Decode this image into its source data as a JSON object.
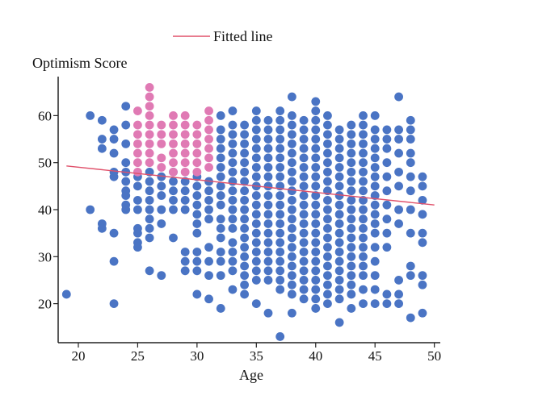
{
  "chart_data": {
    "type": "scatter",
    "xlabel": "Age",
    "ylabel": "Optimism Score",
    "xlim": [
      18.3,
      50.5
    ],
    "ylim": [
      11.7,
      68.3
    ],
    "xticks": [
      20,
      25,
      30,
      35,
      40,
      45,
      50
    ],
    "yticks": [
      20,
      30,
      40,
      50,
      60
    ],
    "grid": false,
    "legend": {
      "position": "top-center",
      "entries": [
        {
          "label": "Fitted line",
          "color": "#e0506a"
        }
      ]
    },
    "colors": {
      "points": "#4a74c4",
      "highlight": "#e07ab4",
      "fitted_line": "#e0506a"
    },
    "fitted_line": {
      "x": [
        19,
        50
      ],
      "y": [
        49.3,
        41.0
      ]
    },
    "series": [
      {
        "color": "#4a74c4",
        "x_groups": [
          {
            "x": 19,
            "y": [
              22
            ]
          },
          {
            "x": 21,
            "y": [
              60,
              40
            ]
          },
          {
            "x": 22,
            "y": [
              59,
              55,
              53,
              37,
              36
            ]
          },
          {
            "x": 23,
            "y": [
              57,
              55,
              52,
              48,
              47,
              35,
              29,
              20
            ]
          },
          {
            "x": 24,
            "y": [
              62,
              58,
              54,
              50,
              48,
              46,
              44,
              43,
              41,
              40
            ]
          },
          {
            "x": 25,
            "y": [
              47,
              45,
              42,
              40,
              36,
              35,
              33,
              32
            ]
          },
          {
            "x": 26,
            "y": [
              48,
              46,
              44,
              42,
              40,
              38,
              36,
              34,
              27
            ]
          },
          {
            "x": 27,
            "y": [
              47,
              45,
              43,
              40,
              37,
              26
            ]
          },
          {
            "x": 28,
            "y": [
              48,
              46,
              44,
              42,
              40,
              34
            ]
          },
          {
            "x": 29,
            "y": [
              46,
              44,
              42,
              40,
              31,
              29,
              27
            ]
          },
          {
            "x": 30,
            "y": [
              47,
              45,
              43,
              41,
              39,
              37,
              35,
              31,
              29,
              27,
              22
            ]
          },
          {
            "x": 31,
            "y": [
              46,
              44,
              42,
              40,
              38,
              32,
              29,
              26,
              21
            ]
          },
          {
            "x": 32,
            "y": [
              60,
              57,
              55,
              53,
              51,
              49,
              47,
              45,
              43,
              41,
              38,
              36,
              34,
              31,
              29,
              26,
              19
            ]
          },
          {
            "x": 33,
            "y": [
              61,
              58,
              56,
              54,
              52,
              50,
              48,
              46,
              44,
              42,
              40,
              38,
              36,
              33,
              31,
              29,
              27,
              23
            ]
          },
          {
            "x": 34,
            "y": [
              58,
              56,
              54,
              52,
              50,
              48,
              46,
              44,
              42,
              40,
              38,
              36,
              34,
              32,
              30,
              28,
              26,
              24,
              22
            ]
          },
          {
            "x": 35,
            "y": [
              61,
              59,
              57,
              55,
              53,
              51,
              49,
              47,
              45,
              43,
              41,
              39,
              37,
              35,
              33,
              31,
              29,
              27,
              25,
              20
            ]
          },
          {
            "x": 36,
            "y": [
              59,
              57,
              55,
              53,
              51,
              49,
              47,
              45,
              43,
              41,
              39,
              37,
              35,
              33,
              31,
              29,
              27,
              25,
              18
            ]
          },
          {
            "x": 37,
            "y": [
              61,
              59,
              57,
              55,
              53,
              51,
              49,
              47,
              45,
              43,
              41,
              39,
              37,
              35,
              33,
              31,
              29,
              27,
              25,
              23,
              13
            ]
          },
          {
            "x": 38,
            "y": [
              64,
              60,
              58,
              56,
              54,
              52,
              50,
              48,
              46,
              44,
              42,
              40,
              38,
              36,
              34,
              32,
              30,
              28,
              26,
              24,
              22,
              18
            ]
          },
          {
            "x": 39,
            "y": [
              59,
              57,
              55,
              53,
              51,
              49,
              47,
              45,
              43,
              41,
              39,
              37,
              35,
              33,
              31,
              29,
              27,
              25,
              23,
              21
            ]
          },
          {
            "x": 40,
            "y": [
              63,
              61,
              59,
              57,
              55,
              53,
              51,
              49,
              47,
              45,
              43,
              41,
              39,
              37,
              35,
              33,
              31,
              29,
              27,
              25,
              23,
              21,
              19
            ]
          },
          {
            "x": 41,
            "y": [
              60,
              58,
              56,
              54,
              52,
              50,
              48,
              46,
              44,
              42,
              40,
              38,
              36,
              34,
              32,
              30,
              28,
              26,
              24,
              22,
              20
            ]
          },
          {
            "x": 42,
            "y": [
              57,
              55,
              53,
              51,
              49,
              47,
              45,
              43,
              41,
              39,
              37,
              35,
              33,
              31,
              29,
              27,
              25,
              23,
              21,
              16
            ]
          },
          {
            "x": 43,
            "y": [
              58,
              56,
              54,
              52,
              50,
              48,
              46,
              44,
              42,
              40,
              38,
              36,
              34,
              32,
              30,
              28,
              26,
              24,
              22,
              19
            ]
          },
          {
            "x": 44,
            "y": [
              60,
              58,
              56,
              54,
              52,
              50,
              48,
              46,
              44,
              42,
              40,
              38,
              36,
              34,
              32,
              30,
              28,
              26,
              23,
              20
            ]
          },
          {
            "x": 45,
            "y": [
              60,
              57,
              55,
              53,
              51,
              49,
              47,
              45,
              43,
              41,
              39,
              37,
              35,
              32,
              29,
              26,
              23,
              20
            ]
          },
          {
            "x": 46,
            "y": [
              57,
              55,
              53,
              50,
              47,
              44,
              41,
              38,
              35,
              32,
              22,
              20
            ]
          },
          {
            "x": 47,
            "y": [
              64,
              57,
              55,
              52,
              48,
              45,
              40,
              37,
              25,
              22,
              20
            ]
          },
          {
            "x": 48,
            "y": [
              59,
              57,
              55,
              52,
              50,
              47,
              44,
              40,
              35,
              28,
              26,
              17
            ]
          },
          {
            "x": 49,
            "y": [
              47,
              45,
              42,
              39,
              35,
              33,
              26,
              24,
              18
            ]
          }
        ]
      },
      {
        "color": "#e07ab4",
        "x_groups": [
          {
            "x": 25,
            "y": [
              61,
              58,
              56,
              54,
              52,
              50,
              48
            ]
          },
          {
            "x": 26,
            "y": [
              66,
              64,
              62,
              60,
              58,
              56,
              54,
              52,
              50
            ]
          },
          {
            "x": 27,
            "y": [
              58,
              56,
              54,
              51,
              49
            ]
          },
          {
            "x": 28,
            "y": [
              60,
              58,
              56,
              54,
              52,
              50,
              48
            ]
          },
          {
            "x": 29,
            "y": [
              60,
              58,
              56,
              54,
              52,
              50,
              48
            ]
          },
          {
            "x": 30,
            "y": [
              58,
              56,
              54,
              52,
              50,
              48
            ]
          },
          {
            "x": 31,
            "y": [
              61,
              59,
              57,
              55,
              53,
              51,
              49
            ]
          }
        ]
      }
    ]
  }
}
